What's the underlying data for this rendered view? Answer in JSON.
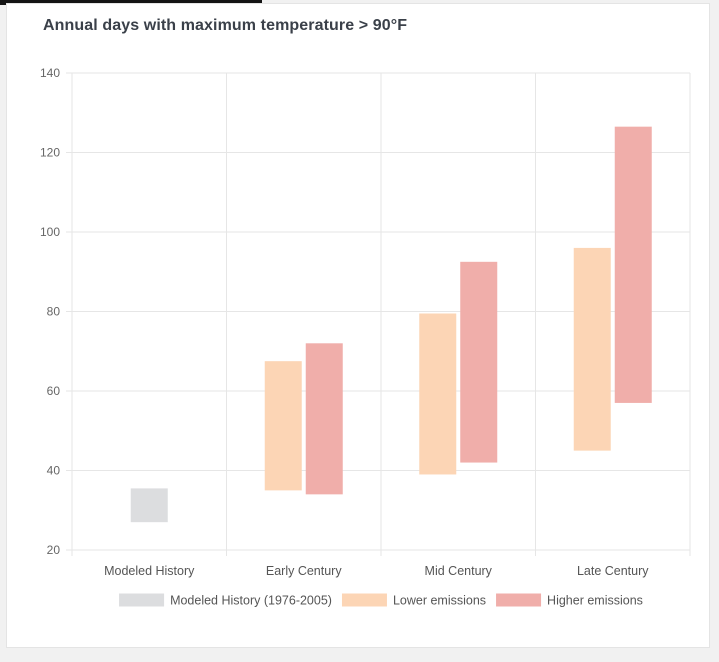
{
  "title": "Annual days with maximum temperature > 90°F",
  "chart_data": {
    "type": "bar",
    "subtype": "floating-range",
    "title": "Annual days with maximum temperature > 90°F",
    "categories": [
      "Modeled History",
      "Early Century",
      "Mid Century",
      "Late Century"
    ],
    "ylim": [
      20,
      140
    ],
    "yticks": [
      20,
      40,
      60,
      80,
      100,
      120,
      140
    ],
    "grid": true,
    "legend_position": "bottom",
    "series": [
      {
        "name": "Modeled History (1976-2005)",
        "color": "#dcdddf",
        "ranges": [
          [
            27,
            35.5
          ],
          null,
          null,
          null
        ]
      },
      {
        "name": "Lower emissions",
        "color": "#fcd5b5",
        "ranges": [
          null,
          [
            35,
            67.5
          ],
          [
            39,
            79.5
          ],
          [
            45,
            96
          ]
        ]
      },
      {
        "name": "Higher emissions",
        "color": "#f0aeaa",
        "ranges": [
          null,
          [
            34,
            72
          ],
          [
            42,
            92.5
          ],
          [
            57,
            126.5
          ]
        ]
      }
    ]
  }
}
